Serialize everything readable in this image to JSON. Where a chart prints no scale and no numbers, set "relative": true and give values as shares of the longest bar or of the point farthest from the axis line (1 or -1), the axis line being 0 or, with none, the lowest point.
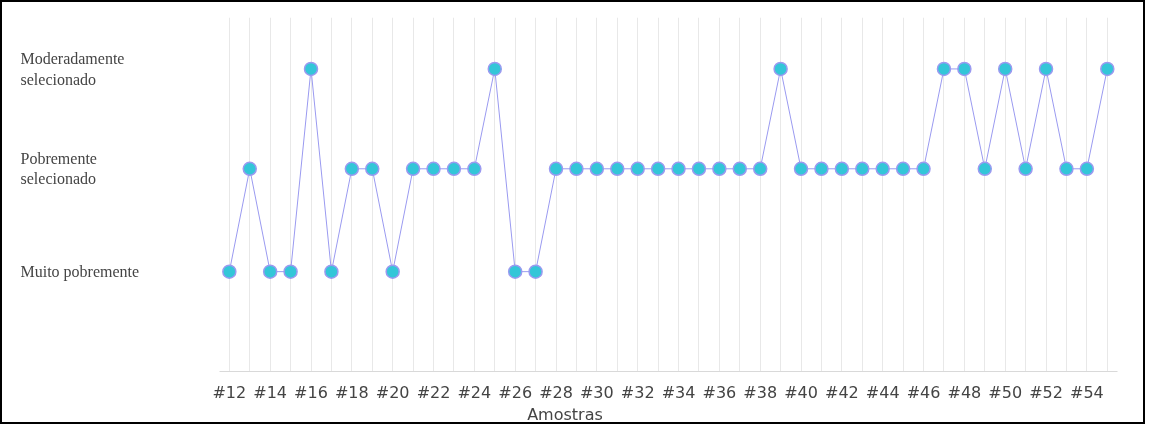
{
  "chart_data": {
    "type": "line",
    "xlabel": "Amostras",
    "relative": true,
    "categories": [
      "#12",
      null,
      "#14",
      null,
      "#16",
      null,
      "#18",
      null,
      "#20",
      null,
      "#22",
      null,
      "#24",
      null,
      "#26",
      null,
      "#28",
      null,
      "#30",
      null,
      "#32",
      null,
      "#34",
      null,
      "#36",
      null,
      "#38",
      null,
      "#40",
      null,
      "#42",
      null,
      "#44",
      null,
      "#46",
      null,
      "#48",
      null,
      "#50",
      null,
      "#52",
      null,
      "#54",
      null
    ],
    "series": [
      {
        "color": "#9a9af0",
        "values": [
          0.33,
          0.67,
          0.33,
          0.33,
          1,
          0.33,
          0.67,
          0.67,
          0.33,
          0.67,
          0.67,
          0.67,
          0.67,
          1,
          0.33,
          0.33,
          0.67,
          0.67,
          0.67,
          0.67,
          0.67,
          0.67,
          0.67,
          0.67,
          0.67,
          0.67,
          0.67,
          1,
          0.67,
          0.67,
          0.67,
          0.67,
          0.67,
          0.67,
          0.67,
          1,
          1,
          0.67,
          1,
          0.67,
          1,
          0.67,
          0.67,
          1
        ]
      }
    ],
    "annotations": [
      "Moderadamente\nselecionado",
      "Pobremente\nselecionado",
      "Muito pobremente"
    ],
    "grid": "x",
    "marker": "circle",
    "line_style": "solid"
  }
}
